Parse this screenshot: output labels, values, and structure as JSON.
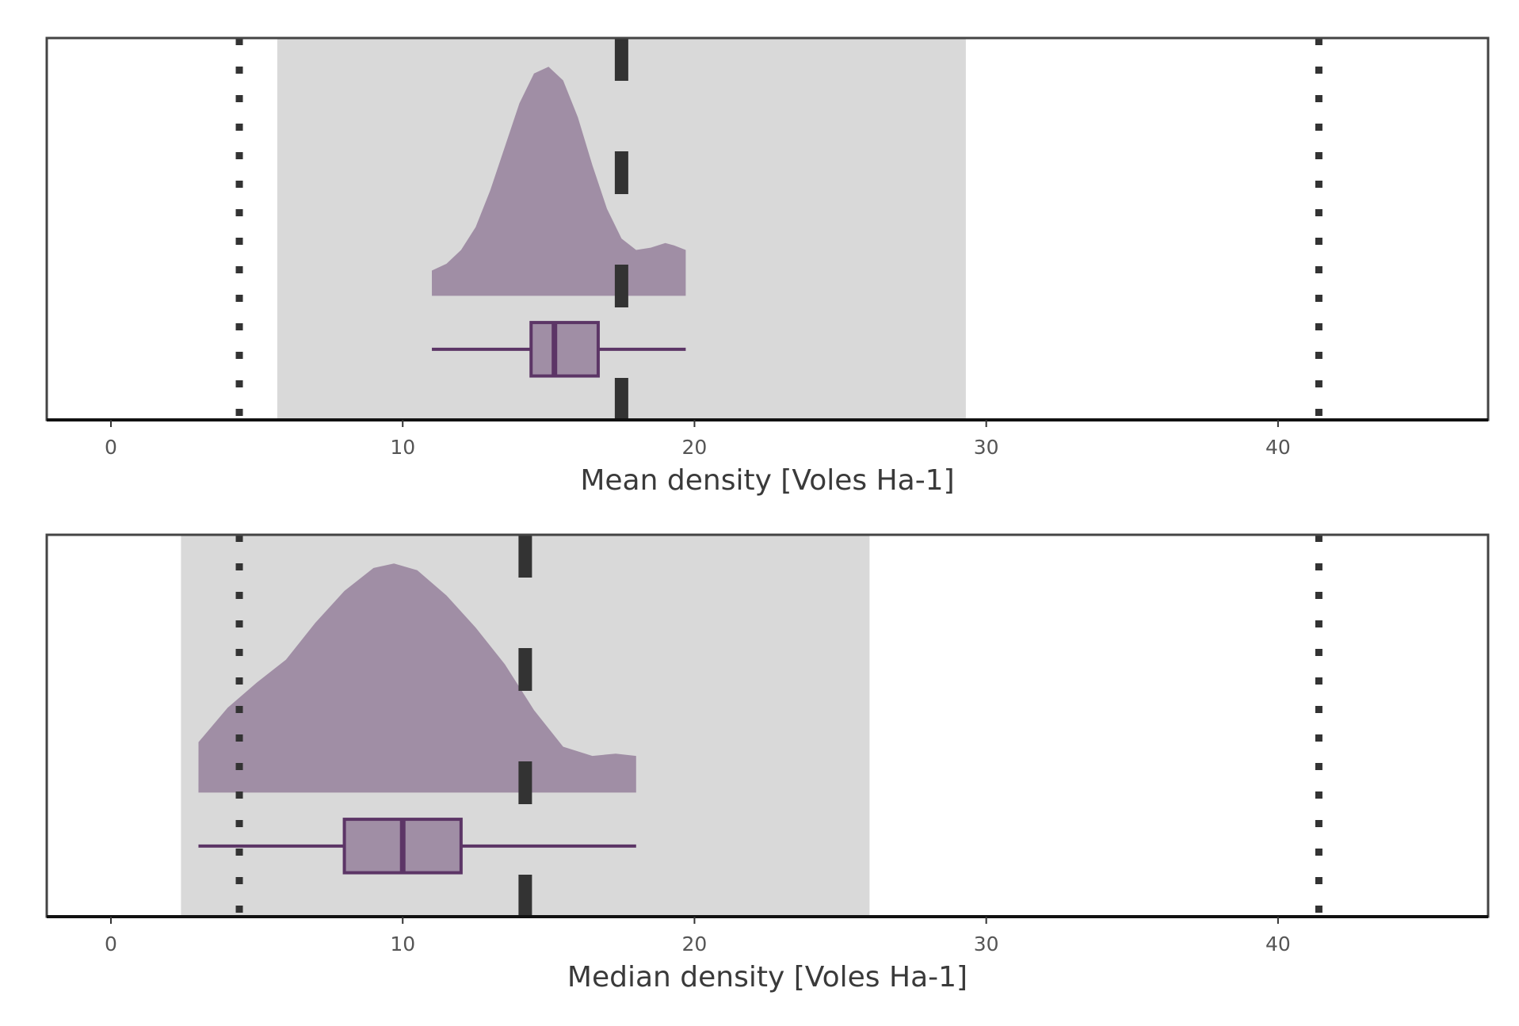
{
  "colors": {
    "density_fill": "#a08ea5",
    "box_fill": "#a08ea5",
    "box_stroke": "#5c3566",
    "shade": "#d9d9d9",
    "ref_line": "#333333",
    "frame": "#444444",
    "text": "#444444"
  },
  "chart_data": [
    {
      "type": "raincloud",
      "xlabel": "Mean density [Voles Ha-1]",
      "xlim": [
        -2.2,
        47.2
      ],
      "xticks": [
        0,
        10,
        20,
        30,
        40
      ],
      "shaded_interval": [
        5.7,
        29.3
      ],
      "dashed_line_x": 17.5,
      "dotted_lines_x": [
        4.4,
        41.4
      ],
      "density": {
        "x": [
          11.0,
          11.5,
          12.0,
          12.5,
          13.0,
          13.5,
          14.0,
          14.5,
          15.0,
          15.5,
          16.0,
          16.5,
          17.0,
          17.5,
          18.0,
          18.5,
          19.0,
          19.3,
          19.7
        ],
        "y": [
          0.11,
          0.14,
          0.2,
          0.3,
          0.46,
          0.65,
          0.84,
          0.97,
          1.0,
          0.94,
          0.78,
          0.57,
          0.38,
          0.25,
          0.2,
          0.21,
          0.23,
          0.22,
          0.2
        ]
      },
      "box": {
        "whisker_low": 11.0,
        "q1": 14.4,
        "median": 15.2,
        "q3": 16.7,
        "whisker_high": 19.7
      }
    },
    {
      "type": "raincloud",
      "xlabel": "Median density [Voles Ha-1]",
      "xlim": [
        -2.2,
        47.2
      ],
      "xticks": [
        0,
        10,
        20,
        30,
        40
      ],
      "shaded_interval": [
        2.4,
        26.0
      ],
      "dashed_line_x": 14.2,
      "dotted_lines_x": [
        4.4,
        41.4
      ],
      "density": {
        "x": [
          3.0,
          4.0,
          5.0,
          6.0,
          7.0,
          8.0,
          9.0,
          9.7,
          10.5,
          11.5,
          12.5,
          13.5,
          14.5,
          15.5,
          16.5,
          17.3,
          18.0
        ],
        "y": [
          0.22,
          0.37,
          0.48,
          0.58,
          0.74,
          0.88,
          0.98,
          1.0,
          0.97,
          0.86,
          0.72,
          0.56,
          0.36,
          0.2,
          0.16,
          0.17,
          0.16
        ]
      },
      "box": {
        "whisker_low": 3.0,
        "q1": 8.0,
        "median": 10.0,
        "q3": 12.0,
        "whisker_high": 18.0
      }
    }
  ]
}
